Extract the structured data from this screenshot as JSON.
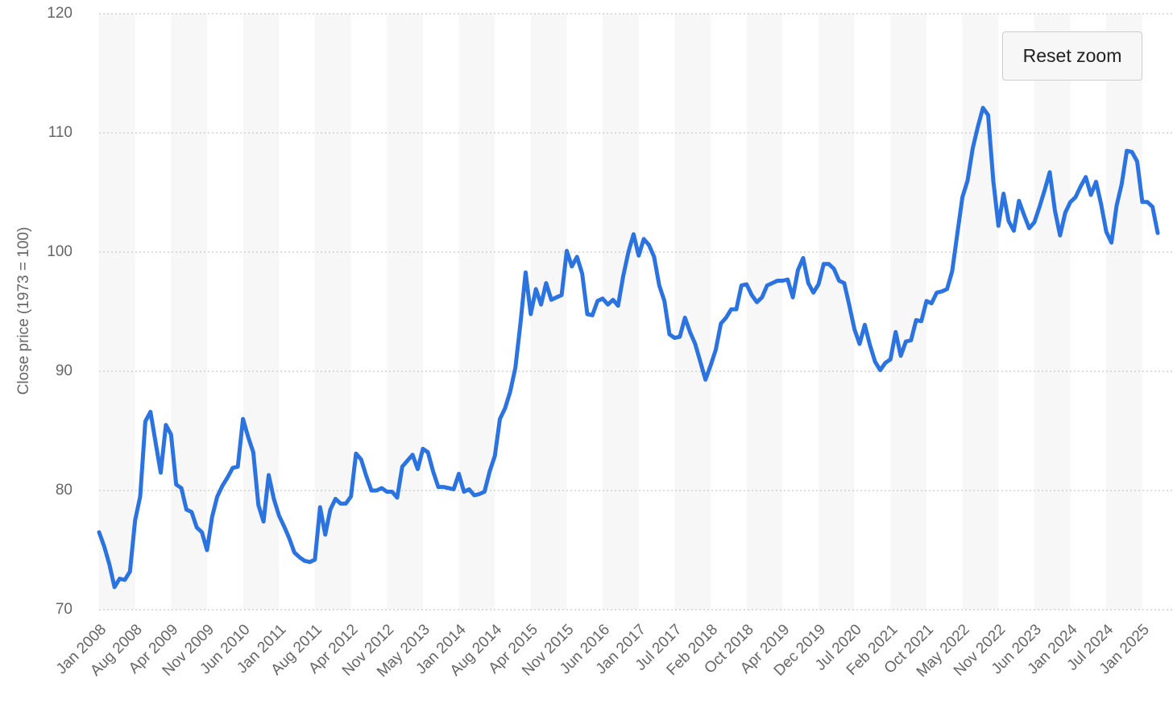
{
  "button": "Reset zoom",
  "chart_data": {
    "type": "line",
    "y_label": "Close price (1973 = 100)",
    "categories": [
      "Jan 2008",
      null,
      null,
      null,
      null,
      null,
      null,
      "Aug 2008",
      null,
      null,
      null,
      null,
      null,
      null,
      "Apr 2009",
      null,
      null,
      null,
      null,
      null,
      null,
      "Nov 2009",
      null,
      null,
      null,
      null,
      null,
      null,
      "Jun 2010",
      null,
      null,
      null,
      null,
      null,
      null,
      "Jan 2011",
      null,
      null,
      null,
      null,
      null,
      null,
      "Aug 2011",
      null,
      null,
      null,
      null,
      null,
      null,
      "Apr 2012",
      null,
      null,
      null,
      null,
      null,
      null,
      "Nov 2012",
      null,
      null,
      null,
      null,
      null,
      null,
      "May 2013",
      null,
      null,
      null,
      null,
      null,
      null,
      "Jan 2014",
      null,
      null,
      null,
      null,
      null,
      null,
      "Aug 2014",
      null,
      null,
      null,
      null,
      null,
      null,
      "Apr 2015",
      null,
      null,
      null,
      null,
      null,
      null,
      "Nov 2015",
      null,
      null,
      null,
      null,
      null,
      null,
      "Jun 2016",
      null,
      null,
      null,
      null,
      null,
      null,
      "Jan 2017",
      null,
      null,
      null,
      null,
      null,
      null,
      "Jul 2017",
      null,
      null,
      null,
      null,
      null,
      null,
      "Feb 2018",
      null,
      null,
      null,
      null,
      null,
      null,
      "Oct 2018",
      null,
      null,
      null,
      null,
      null,
      null,
      "Apr 2019",
      null,
      null,
      null,
      null,
      null,
      null,
      "Dec 2019",
      null,
      null,
      null,
      null,
      null,
      null,
      "Jul 2020",
      null,
      null,
      null,
      null,
      null,
      null,
      "Feb 2021",
      null,
      null,
      null,
      null,
      null,
      null,
      "Oct 2021",
      null,
      null,
      null,
      null,
      null,
      null,
      "May 2022",
      null,
      null,
      null,
      null,
      null,
      null,
      "Nov 2022",
      null,
      null,
      null,
      null,
      null,
      null,
      "Jun 2023",
      null,
      null,
      null,
      null,
      null,
      null,
      "Jan 2024",
      null,
      null,
      null,
      null,
      null,
      null,
      "Jul 2024",
      null,
      null,
      null,
      null,
      null,
      null,
      "Jan 2025",
      null,
      null,
      null
    ],
    "series": [
      {
        "color": "#2a73e0",
        "values": [
          76.5,
          75.3,
          73.8,
          71.9,
          72.6,
          72.5,
          73.2,
          77.5,
          79.5,
          85.8,
          86.6,
          84,
          81.5,
          85.5,
          84.7,
          80.5,
          80.2,
          78.4,
          78.2,
          76.9,
          76.5,
          75,
          77.8,
          79.5,
          80.4,
          81.1,
          81.9,
          82,
          86,
          84.5,
          83.2,
          78.8,
          77.4,
          81.3,
          79.3,
          77.9,
          77,
          76,
          74.8,
          74.4,
          74.1,
          74,
          74.2,
          78.6,
          76.3,
          78.4,
          79.3,
          78.9,
          78.9,
          79.5,
          83.1,
          82.6,
          81.2,
          80,
          80,
          80.2,
          79.9,
          79.9,
          79.4,
          82,
          82.5,
          83,
          81.8,
          83.5,
          83.2,
          81.6,
          80.3,
          80.3,
          80.2,
          80.1,
          81.4,
          79.9,
          80.1,
          79.6,
          79.7,
          79.9,
          81.6,
          82.9,
          86,
          86.9,
          88.3,
          90.3,
          94,
          98.3,
          94.8,
          96.9,
          95.6,
          97.4,
          96,
          96.2,
          96.4,
          100.1,
          98.8,
          99.6,
          98.2,
          94.8,
          94.7,
          95.9,
          96.1,
          95.6,
          96,
          95.5,
          98,
          100,
          101.5,
          99.7,
          101.1,
          100.6,
          99.6,
          97.2,
          95.9,
          93.1,
          92.8,
          92.9,
          94.5,
          93.3,
          92.3,
          90.8,
          89.3,
          90.5,
          91.8,
          94,
          94.5,
          95.2,
          95.2,
          97.2,
          97.3,
          96.4,
          95.8,
          96.2,
          97.2,
          97.4,
          97.6,
          97.6,
          97.7,
          96.2,
          98.5,
          99.5,
          97.4,
          96.6,
          97.3,
          99,
          99,
          98.6,
          97.6,
          97.4,
          95.5,
          93.5,
          92.3,
          93.9,
          92.2,
          90.8,
          90.1,
          90.7,
          91,
          93.3,
          91.3,
          92.5,
          92.6,
          94.3,
          94.2,
          95.9,
          95.7,
          96.6,
          96.7,
          96.9,
          98.4,
          101.5,
          104.6,
          106,
          108.7,
          110.5,
          112.1,
          111.5,
          106,
          102.2,
          104.9,
          102.6,
          101.8,
          104.3,
          103.1,
          102,
          102.5,
          103.8,
          105.2,
          106.7,
          103.5,
          101.4,
          103.3,
          104.2,
          104.6,
          105.5,
          106.3,
          104.8,
          105.9,
          104,
          101.7,
          100.8,
          103.9,
          105.7,
          108.5,
          108.4,
          107.6,
          104.2,
          104.2,
          103.8,
          101.6
        ]
      }
    ],
    "ylim": [
      70,
      120
    ],
    "yticks": [
      70,
      80,
      90,
      100,
      110,
      120
    ],
    "grid": true,
    "bands": true
  }
}
